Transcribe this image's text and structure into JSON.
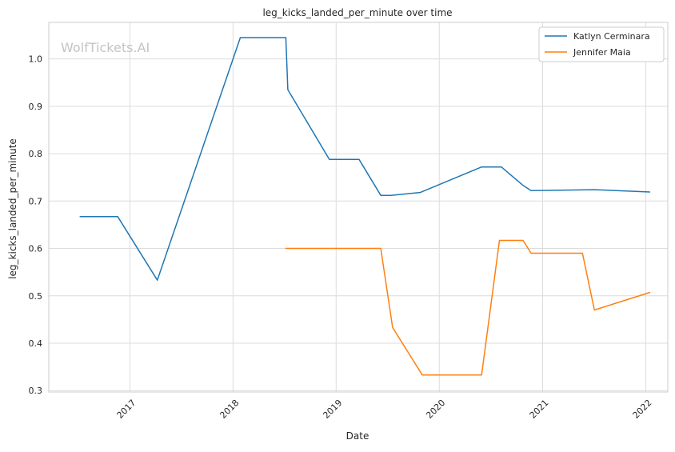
{
  "watermark": "WolfTickets.AI",
  "chart_data": {
    "type": "line",
    "title": "leg_kicks_landed_per_minute over time",
    "xlabel": "Date",
    "ylabel": "leg_kicks_landed_per_minute",
    "xlim": [
      "2016-03-20",
      "2022-03-20"
    ],
    "ylim": [
      0.297,
      1.077
    ],
    "x_ticks": [
      {
        "date": "2017-01-01",
        "label": "2017"
      },
      {
        "date": "2018-01-01",
        "label": "2018"
      },
      {
        "date": "2019-01-01",
        "label": "2019"
      },
      {
        "date": "2020-01-01",
        "label": "2020"
      },
      {
        "date": "2021-01-01",
        "label": "2021"
      },
      {
        "date": "2022-01-01",
        "label": "2022"
      }
    ],
    "y_ticks": [
      {
        "value": 0.3,
        "label": "0.3"
      },
      {
        "value": 0.4,
        "label": "0.4"
      },
      {
        "value": 0.5,
        "label": "0.5"
      },
      {
        "value": 0.6,
        "label": "0.6"
      },
      {
        "value": 0.7,
        "label": "0.7"
      },
      {
        "value": 0.8,
        "label": "0.8"
      },
      {
        "value": 0.9,
        "label": "0.9"
      },
      {
        "value": 1.0,
        "label": "1.0"
      }
    ],
    "grid": true,
    "legend_position": "top-right",
    "series": [
      {
        "name": "Katlyn Cerminara",
        "color": "#1f77b4",
        "points": [
          {
            "x": "2016-07-09",
            "y": 0.667
          },
          {
            "x": "2016-11-19",
            "y": 0.667
          },
          {
            "x": "2017-04-08",
            "y": 0.533
          },
          {
            "x": "2018-01-27",
            "y": 1.045
          },
          {
            "x": "2018-07-07",
            "y": 1.045
          },
          {
            "x": "2018-07-14",
            "y": 0.935
          },
          {
            "x": "2018-12-08",
            "y": 0.788
          },
          {
            "x": "2019-03-23",
            "y": 0.788
          },
          {
            "x": "2019-06-08",
            "y": 0.712
          },
          {
            "x": "2019-07-13",
            "y": 0.712
          },
          {
            "x": "2019-10-26",
            "y": 0.718
          },
          {
            "x": "2020-05-30",
            "y": 0.772
          },
          {
            "x": "2020-08-08",
            "y": 0.772
          },
          {
            "x": "2020-10-24",
            "y": 0.733
          },
          {
            "x": "2020-11-21",
            "y": 0.722
          },
          {
            "x": "2021-07-03",
            "y": 0.724
          },
          {
            "x": "2022-01-15",
            "y": 0.719
          }
        ]
      },
      {
        "name": "Jennifer Maia",
        "color": "#ff7f0e",
        "points": [
          {
            "x": "2018-07-07",
            "y": 0.6
          },
          {
            "x": "2019-06-08",
            "y": 0.6
          },
          {
            "x": "2019-07-20",
            "y": 0.433
          },
          {
            "x": "2019-11-02",
            "y": 0.333
          },
          {
            "x": "2020-05-30",
            "y": 0.333
          },
          {
            "x": "2020-08-01",
            "y": 0.617
          },
          {
            "x": "2020-10-24",
            "y": 0.617
          },
          {
            "x": "2020-11-21",
            "y": 0.59
          },
          {
            "x": "2021-05-22",
            "y": 0.59
          },
          {
            "x": "2021-07-03",
            "y": 0.47
          },
          {
            "x": "2022-01-15",
            "y": 0.507
          }
        ]
      }
    ]
  }
}
